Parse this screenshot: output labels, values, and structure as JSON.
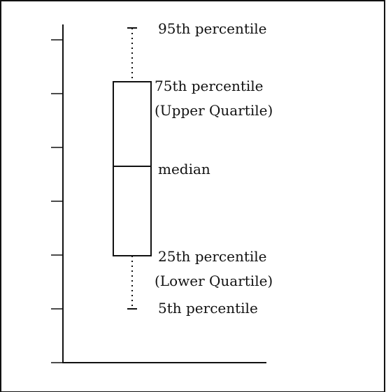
{
  "labels": {
    "p95": "95th percentile",
    "p75_line1": "75th percentile",
    "p75_line2": "(Upper Quartile)",
    "median": "median",
    "p25_line1": "25th percentile",
    "p25_line2": "(Lower Quartile)",
    "p5": "5th percentile"
  },
  "colors": {
    "stroke": "#111111",
    "background": "#ffffff"
  }
}
